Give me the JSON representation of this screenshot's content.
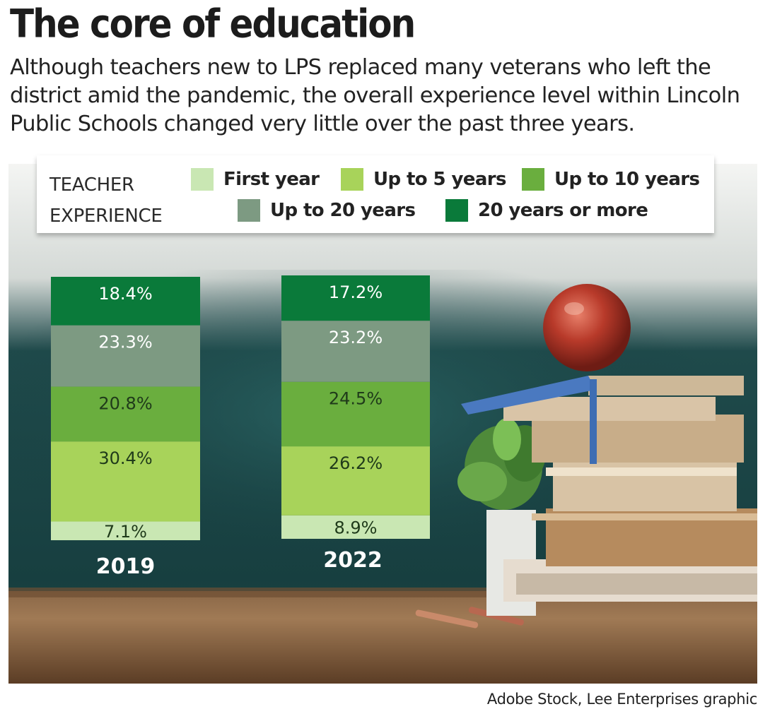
{
  "title": "The core of education",
  "subtitle": "Although teachers new to LPS replaced many veterans who left the district amid the pandemic, the overall experience level within Lincoln Public Schools changed very little over the past three years.",
  "legend": {
    "heading": "TEACHER EXPERIENCE",
    "items": [
      {
        "label": "First year",
        "color": "#c9e7b3"
      },
      {
        "label": "Up to 5 years",
        "color": "#a8d35a"
      },
      {
        "label": "Up to 10 years",
        "color": "#6aae3e"
      },
      {
        "label": "Up to 20 years",
        "color": "#7d9a82"
      },
      {
        "label": "20 years or more",
        "color": "#0a7a3a"
      }
    ]
  },
  "chart_data": {
    "type": "bar",
    "stacked": true,
    "categories": [
      "2019",
      "2022"
    ],
    "series": [
      {
        "name": "First year",
        "values": [
          7.1,
          8.9
        ],
        "labels": [
          "7.1%",
          "8.9%"
        ]
      },
      {
        "name": "Up to 5 years",
        "values": [
          30.4,
          26.2
        ],
        "labels": [
          "30.4%",
          "26.2%"
        ]
      },
      {
        "name": "Up to 10 years",
        "values": [
          20.8,
          24.5
        ],
        "labels": [
          "20.8%",
          "24.5%"
        ]
      },
      {
        "name": "Up to 20 years",
        "values": [
          23.3,
          23.2
        ],
        "labels": [
          "23.3%",
          "23.2%"
        ]
      },
      {
        "name": "20 years or more",
        "values": [
          18.4,
          17.2
        ],
        "labels": [
          "18.4%",
          "17.2%"
        ]
      }
    ],
    "unit": "%"
  },
  "source": "Adobe Stock, Lee Enterprises graphic"
}
